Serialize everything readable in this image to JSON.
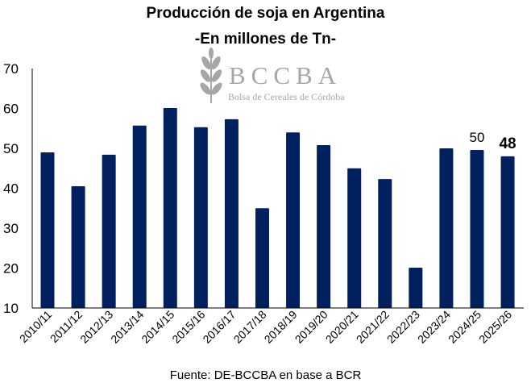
{
  "chart_data": {
    "type": "bar",
    "title": "Producción de soja en Argentina",
    "subtitle": "-En millones  de Tn-",
    "xlabel": "",
    "ylabel": "",
    "ylim": [
      10,
      70
    ],
    "yticks": [
      10,
      20,
      30,
      40,
      50,
      60,
      70
    ],
    "grid": false,
    "categories": [
      "2010/11",
      "2011/12",
      "2012/13",
      "2013/14",
      "2014/15",
      "2015/16",
      "2016/17",
      "2017/18",
      "2018/19",
      "2019/20",
      "2020/21",
      "2021/22",
      "2022/23",
      "2023/24",
      "2024/25",
      "2025/26"
    ],
    "values": [
      49.0,
      40.5,
      48.4,
      55.7,
      60.1,
      55.3,
      57.3,
      35.0,
      54.0,
      50.8,
      45.0,
      42.3,
      20.1,
      50.0,
      49.6,
      48.0
    ],
    "data_labels": [
      {
        "category": "2024/25",
        "text": "50",
        "bold": false
      },
      {
        "category": "2025/26",
        "text": "48",
        "bold": true
      }
    ],
    "bar_color": "#002060",
    "source": "Fuente: DE-BCCBA en base a BCR"
  },
  "logo": {
    "name": "BCCBA",
    "subtitle": "Bolsa de Cereales de Córdoba",
    "icon": "wheat-icon",
    "color": "#a6a6a6"
  }
}
